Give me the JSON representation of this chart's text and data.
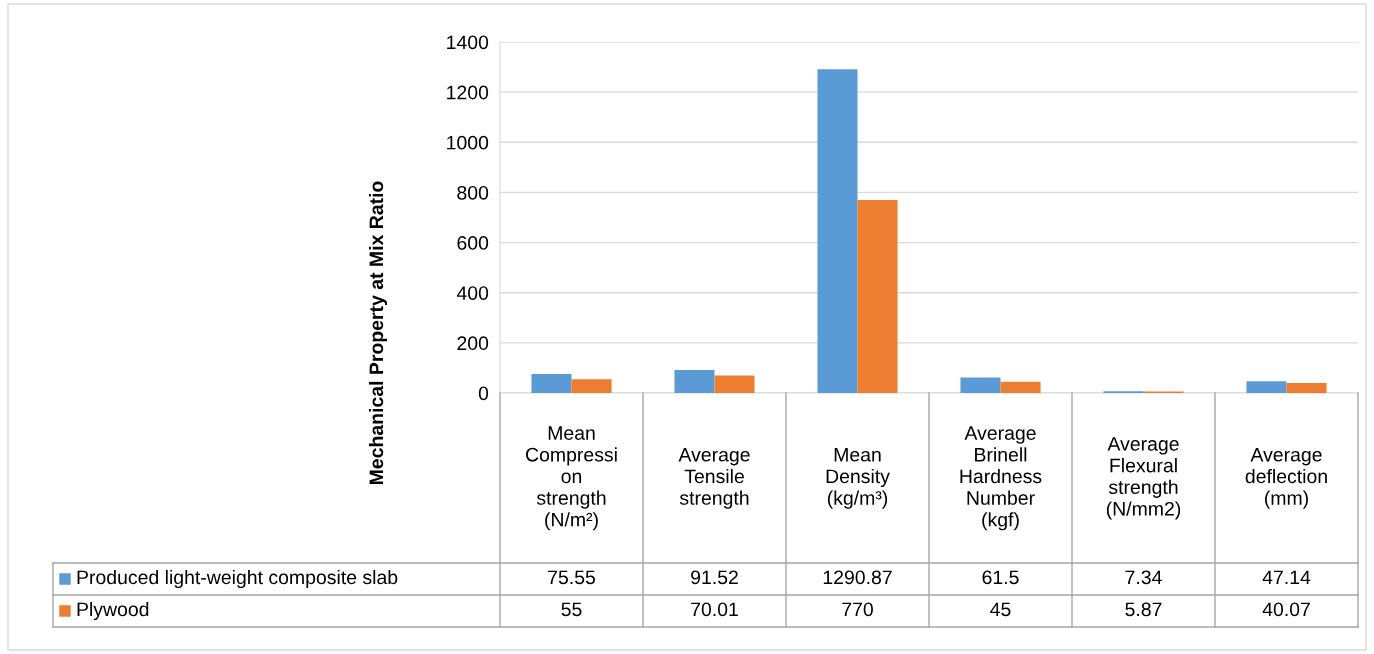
{
  "chart_data": {
    "type": "bar",
    "ylabel": "Mechanical Property at Mix Ratio",
    "categories": [
      "Mean\nCompressi\non\nstrength\n(N/m²)",
      "Average\nTensile\nstrength",
      "Mean\nDensity\n(kg/m³)",
      "Average\nBrinell\nHardness\nNumber\n(kgf)",
      "Average\nFlexural\nstrength\n(N/mm2)",
      "Average\ndeflection\n(mm)"
    ],
    "series": [
      {
        "name": "Produced light-weight composite slab",
        "color": "#5b9bd5",
        "values": [
          75.55,
          91.52,
          1290.87,
          61.5,
          7.34,
          47.14
        ]
      },
      {
        "name": "Plywood",
        "color": "#ed7d31",
        "values": [
          55,
          70.01,
          770,
          45,
          5.87,
          40.07
        ]
      }
    ],
    "ylim": [
      0,
      1400
    ],
    "yticks": [
      0,
      200,
      400,
      600,
      800,
      1000,
      1200,
      1400
    ],
    "grid": "y",
    "legend": "bottom",
    "data_labels": true
  }
}
